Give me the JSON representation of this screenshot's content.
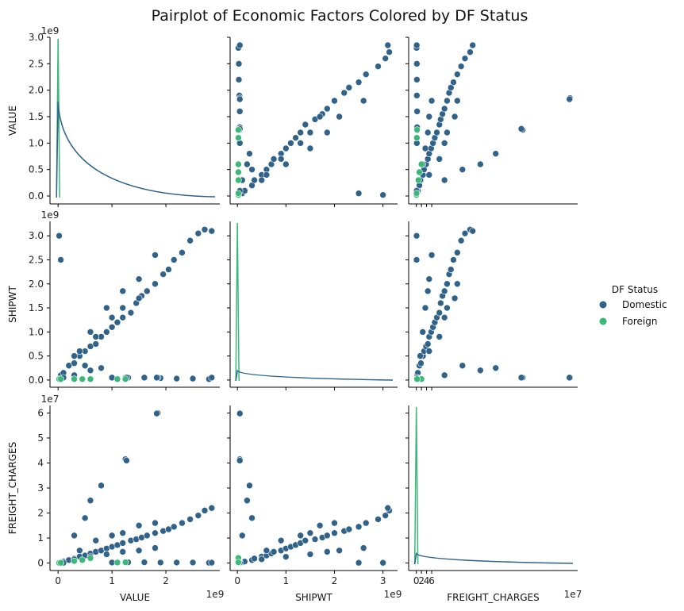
{
  "chart_data": {
    "type": "scatter",
    "subtype": "pairplot",
    "title": "Pairplot of Economic Factors Colored by DF Status",
    "variables": [
      "VALUE",
      "SHIPWT",
      "FREIGHT_CHARGES"
    ],
    "ranges": {
      "VALUE": {
        "lim": [
          -0.15,
          3.0
        ],
        "ticks": [
          0,
          1,
          2
        ],
        "ytickvals": [
          0.0,
          0.5,
          1.0,
          1.5,
          2.0,
          2.5,
          3.0
        ],
        "ytick_labels": [
          "0.0",
          "0.5",
          "1.0",
          "1.5",
          "2.0",
          "2.5",
          "3.0"
        ],
        "scale_label": "1e9"
      },
      "SHIPWT": {
        "lim": [
          -0.15,
          3.3
        ],
        "ticks": [
          0,
          1,
          2,
          3
        ],
        "ytickvals": [
          0.0,
          0.5,
          1.0,
          1.5,
          2.0,
          2.5,
          3.0
        ],
        "ytick_labels": [
          "0.0",
          "0.5",
          "1.0",
          "1.5",
          "2.0",
          "2.5",
          "3.0"
        ],
        "scale_label": "1e9"
      },
      "FREIGHT_CHARGES": {
        "lim": [
          -3,
          63
        ],
        "ticks": [
          0,
          2,
          4,
          6
        ],
        "ytickvals": [
          0,
          1,
          2,
          3,
          4,
          5,
          6
        ],
        "ytick_labels": [
          "0",
          "1",
          "2",
          "3",
          "4",
          "5",
          "6"
        ],
        "scale_label": "1e7",
        "unit_factor": 10
      }
    },
    "legend": {
      "title": "DF Status",
      "placement": "right",
      "entries": [
        {
          "name": "Domestic",
          "color": "#30628a"
        },
        {
          "name": "Foreign",
          "color": "#3bb878"
        }
      ]
    },
    "series": [
      {
        "name": "Domestic",
        "points": [
          [
            0.02,
            0.03,
            0.1
          ],
          [
            0.05,
            0.1,
            0.3
          ],
          [
            0.1,
            0.15,
            0.6
          ],
          [
            0.2,
            0.3,
            1.2
          ],
          [
            0.3,
            0.35,
            1.8
          ],
          [
            0.4,
            0.5,
            2.6
          ],
          [
            0.5,
            0.6,
            3.0
          ],
          [
            0.6,
            0.7,
            3.8
          ],
          [
            0.7,
            0.75,
            4.5
          ],
          [
            0.8,
            0.9,
            5.0
          ],
          [
            0.9,
            1.0,
            5.8
          ],
          [
            1.0,
            1.1,
            6.5
          ],
          [
            1.1,
            1.2,
            7.2
          ],
          [
            1.2,
            1.3,
            8.0
          ],
          [
            1.35,
            1.4,
            9.0
          ],
          [
            1.45,
            1.6,
            9.5
          ],
          [
            1.55,
            1.75,
            10.2
          ],
          [
            1.65,
            1.85,
            11.0
          ],
          [
            1.8,
            2.0,
            12.0
          ],
          [
            1.95,
            2.2,
            12.8
          ],
          [
            2.05,
            2.3,
            13.5
          ],
          [
            2.15,
            2.5,
            14.5
          ],
          [
            2.3,
            2.65,
            16.0
          ],
          [
            2.45,
            2.9,
            17.5
          ],
          [
            2.6,
            3.05,
            19.0
          ],
          [
            2.72,
            3.13,
            21.0
          ],
          [
            2.85,
            3.1,
            22.0
          ],
          [
            0.3,
            0.5,
            1.5
          ],
          [
            0.6,
            1.0,
            2.5
          ],
          [
            0.9,
            1.5,
            3.5
          ],
          [
            1.2,
            1.85,
            4.5
          ],
          [
            1.5,
            2.1,
            5.0
          ],
          [
            1.8,
            2.6,
            6.0
          ],
          [
            0.4,
            0.6,
            5.0
          ],
          [
            0.7,
            0.9,
            9.0
          ],
          [
            1.0,
            1.3,
            11.0
          ],
          [
            1.2,
            1.5,
            12.0
          ],
          [
            1.5,
            1.7,
            15.0
          ],
          [
            1.8,
            2.0,
            16.0
          ],
          [
            1.0,
            0.05,
            0.2
          ],
          [
            1.3,
            0.05,
            0.3
          ],
          [
            1.6,
            0.05,
            0.3
          ],
          [
            1.9,
            0.04,
            0.2
          ],
          [
            2.2,
            0.03,
            0.2
          ],
          [
            2.5,
            0.03,
            0.2
          ],
          [
            2.8,
            0.02,
            0.1
          ],
          [
            1.85,
            0.05,
            60.0
          ],
          [
            1.83,
            0.05,
            59.8
          ],
          [
            1.25,
            0.05,
            41.5
          ],
          [
            1.27,
            0.05,
            41.0
          ],
          [
            0.3,
            0.1,
            11.0
          ],
          [
            0.6,
            0.2,
            25.0
          ],
          [
            0.8,
            0.25,
            31.0
          ],
          [
            0.5,
            0.3,
            18.0
          ],
          [
            0.1,
            0.05,
            0.1
          ],
          [
            2.85,
            0.05,
            0.15
          ],
          [
            0.05,
            2.5,
            0.1
          ],
          [
            0.02,
            3.0,
            0.1
          ]
        ]
      },
      {
        "name": "Foreign",
        "points": [
          [
            0.02,
            0.02,
            0.05
          ],
          [
            0.05,
            0.02,
            0.1
          ],
          [
            0.3,
            0.02,
            0.8
          ],
          [
            0.45,
            0.02,
            1.2
          ],
          [
            0.6,
            0.02,
            2.0
          ],
          [
            1.1,
            0.02,
            0.2
          ],
          [
            1.25,
            0.02,
            0.3
          ]
        ]
      }
    ],
    "diagonal_kde": [
      {
        "variable": "VALUE",
        "peak": {
          "Foreign": 2.85,
          "Domestic": 1.72
        }
      },
      {
        "variable": "SHIPWT",
        "peak": {
          "Foreign": 3.12,
          "Domestic": 0.2
        }
      },
      {
        "variable": "FREIGHT_CHARGES",
        "peak": {
          "Foreign": 5.95,
          "Domestic": 0.4
        }
      }
    ]
  }
}
